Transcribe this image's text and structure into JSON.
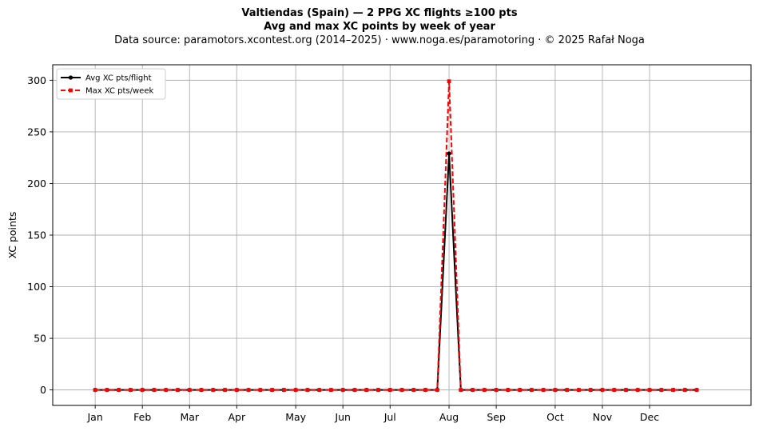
{
  "figure": {
    "title_line1": "Valtiendas (Spain)  —  2 PPG XC flights ≥100 pts",
    "title_line2": "Avg and max XC points by week of year",
    "title_line3": "Data source: paramotors.xcontest.org (2014–2025)  ·  www.noga.es/paramotoring  ·  © 2025 Rafał Noga"
  },
  "chart_data": {
    "type": "line",
    "title": "Valtiendas (Spain)  —  2 PPG XC flights ≥100 pts",
    "subtitle": "Avg and max XC points by week of year",
    "xlabel": "",
    "ylabel": "XC points",
    "x_unit": "week of year",
    "xlim": [
      -2.6,
      56.6
    ],
    "ylim": [
      -15,
      315
    ],
    "y_ticks": [
      0,
      50,
      100,
      150,
      200,
      250,
      300
    ],
    "x_ticks": [
      {
        "label": "Jan",
        "week": 1
      },
      {
        "label": "Feb",
        "week": 5
      },
      {
        "label": "Mar",
        "week": 9
      },
      {
        "label": "Apr",
        "week": 13
      },
      {
        "label": "May",
        "week": 18
      },
      {
        "label": "Jun",
        "week": 22
      },
      {
        "label": "Jul",
        "week": 26
      },
      {
        "label": "Aug",
        "week": 31
      },
      {
        "label": "Sep",
        "week": 35
      },
      {
        "label": "Oct",
        "week": 40
      },
      {
        "label": "Nov",
        "week": 44
      },
      {
        "label": "Dec",
        "week": 48
      }
    ],
    "grid": true,
    "legend_position": "upper-left",
    "x": [
      1,
      2,
      3,
      4,
      5,
      6,
      7,
      8,
      9,
      10,
      11,
      12,
      13,
      14,
      15,
      16,
      17,
      18,
      19,
      20,
      21,
      22,
      23,
      24,
      25,
      26,
      27,
      28,
      29,
      30,
      31,
      32,
      33,
      34,
      35,
      36,
      37,
      38,
      39,
      40,
      41,
      42,
      43,
      44,
      45,
      46,
      47,
      48,
      49,
      50,
      51,
      52
    ],
    "series": [
      {
        "name": "Avg XC pts/flight",
        "color": "#000000",
        "style": "solid",
        "marker": "circle",
        "values": [
          0,
          0,
          0,
          0,
          0,
          0,
          0,
          0,
          0,
          0,
          0,
          0,
          0,
          0,
          0,
          0,
          0,
          0,
          0,
          0,
          0,
          0,
          0,
          0,
          0,
          0,
          0,
          0,
          0,
          0,
          229,
          0,
          0,
          0,
          0,
          0,
          0,
          0,
          0,
          0,
          0,
          0,
          0,
          0,
          0,
          0,
          0,
          0,
          0,
          0,
          0,
          0
        ]
      },
      {
        "name": "Max XC pts/week",
        "color": "#ff0000",
        "style": "dashed",
        "marker": "square",
        "values": [
          0,
          0,
          0,
          0,
          0,
          0,
          0,
          0,
          0,
          0,
          0,
          0,
          0,
          0,
          0,
          0,
          0,
          0,
          0,
          0,
          0,
          0,
          0,
          0,
          0,
          0,
          0,
          0,
          0,
          0,
          299,
          0,
          0,
          0,
          0,
          0,
          0,
          0,
          0,
          0,
          0,
          0,
          0,
          0,
          0,
          0,
          0,
          0,
          0,
          0,
          0,
          0
        ]
      }
    ]
  }
}
